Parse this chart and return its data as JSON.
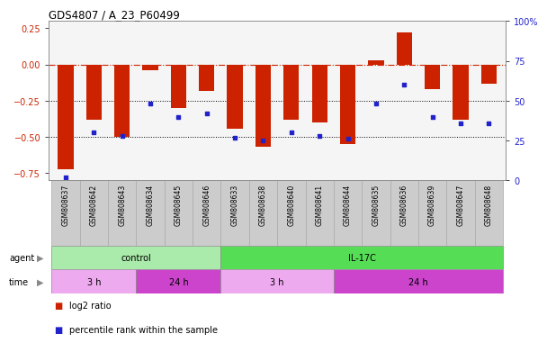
{
  "title": "GDS4807 / A_23_P60499",
  "samples": [
    "GSM808637",
    "GSM808642",
    "GSM808643",
    "GSM808634",
    "GSM808645",
    "GSM808646",
    "GSM808633",
    "GSM808638",
    "GSM808640",
    "GSM808641",
    "GSM808644",
    "GSM808635",
    "GSM808636",
    "GSM808639",
    "GSM808647",
    "GSM808648"
  ],
  "log2_ratio": [
    -0.72,
    -0.38,
    -0.5,
    -0.04,
    -0.3,
    -0.18,
    -0.44,
    -0.57,
    -0.38,
    -0.4,
    -0.55,
    0.03,
    0.22,
    -0.17,
    -0.38,
    -0.13
  ],
  "percentile": [
    2,
    30,
    28,
    48,
    40,
    42,
    27,
    25,
    30,
    28,
    26,
    48,
    60,
    40,
    36,
    36
  ],
  "agent_groups": [
    {
      "label": "control",
      "start": 0,
      "end": 6,
      "color": "#aaeaaa"
    },
    {
      "label": "IL-17C",
      "start": 6,
      "end": 16,
      "color": "#55dd55"
    }
  ],
  "time_groups": [
    {
      "label": "3 h",
      "start": 0,
      "end": 3,
      "color": "#eeaaee"
    },
    {
      "label": "24 h",
      "start": 3,
      "end": 6,
      "color": "#cc44cc"
    },
    {
      "label": "3 h",
      "start": 6,
      "end": 10,
      "color": "#eeaaee"
    },
    {
      "label": "24 h",
      "start": 10,
      "end": 16,
      "color": "#cc44cc"
    }
  ],
  "bar_color": "#cc2200",
  "dot_color": "#2222cc",
  "hline_color": "#cc2200",
  "dotted_line_color": "#000000",
  "ylim_left": [
    -0.8,
    0.3
  ],
  "ylim_right": [
    0,
    100
  ],
  "yticks_left": [
    -0.75,
    -0.5,
    -0.25,
    0,
    0.25
  ],
  "yticks_right": [
    0,
    25,
    50,
    75,
    100
  ],
  "sample_bg_color": "#cccccc",
  "background_color": "#ffffff",
  "plot_bg_color": "#f5f5f5",
  "legend_items": [
    {
      "color": "#cc2200",
      "label": "log2 ratio"
    },
    {
      "color": "#2222cc",
      "label": "percentile rank within the sample"
    }
  ]
}
